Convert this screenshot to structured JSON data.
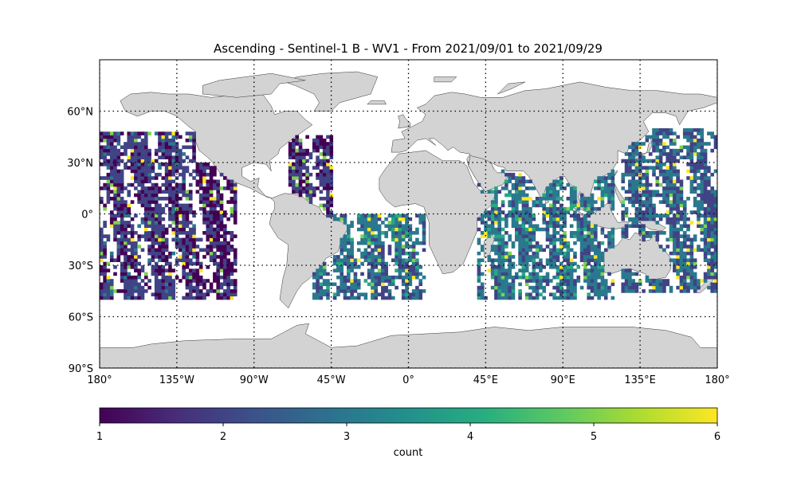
{
  "chart_data": {
    "type": "heatmap",
    "title": "Ascending - Sentinel-1 B - WV1 - From 2021/09/01 to 2021/09/29",
    "projection": "equirectangular",
    "extent": {
      "lon": [
        -180,
        180
      ],
      "lat": [
        -90,
        90
      ]
    },
    "xticks": [
      {
        "lon": -180,
        "label": "180°"
      },
      {
        "lon": -135,
        "label": "135°W"
      },
      {
        "lon": -90,
        "label": "90°W"
      },
      {
        "lon": -45,
        "label": "45°W"
      },
      {
        "lon": 0,
        "label": "0°"
      },
      {
        "lon": 45,
        "label": "45°E"
      },
      {
        "lon": 90,
        "label": "90°E"
      },
      {
        "lon": 135,
        "label": "135°E"
      },
      {
        "lon": 180,
        "label": "180°"
      }
    ],
    "yticks": [
      {
        "lat": 60,
        "label": "60°N"
      },
      {
        "lat": 30,
        "label": "30°N"
      },
      {
        "lat": 0,
        "label": "0°"
      },
      {
        "lat": -30,
        "label": "30°S"
      },
      {
        "lat": -60,
        "label": "60°S"
      },
      {
        "lat": -90,
        "label": "90°S"
      }
    ],
    "grid": "dotted",
    "land_color": "#d3d3d3",
    "colormap": "viridis",
    "colorbar": {
      "label": "count",
      "range": [
        1,
        6
      ],
      "ticks": [
        {
          "value": 1,
          "label": "1"
        },
        {
          "value": 2,
          "label": "2"
        },
        {
          "value": 3,
          "label": "3"
        },
        {
          "value": 4,
          "label": "4"
        },
        {
          "value": 5,
          "label": "5"
        },
        {
          "value": 6,
          "label": "6"
        }
      ],
      "placement": "bottom"
    },
    "data_lat_range": [
      -50,
      50
    ],
    "data_lon_range": [
      -180,
      180
    ],
    "cell_size_deg": 2,
    "coverage_bands": [
      {
        "region": "eastern Pacific",
        "lon": [
          -180,
          -125
        ],
        "lat": [
          -50,
          48
        ],
        "typical_count": 1.8
      },
      {
        "region": "eastern Pacific swaths",
        "lon": [
          -125,
          -100
        ],
        "lat": [
          -50,
          30
        ],
        "typical_count": 1.4
      },
      {
        "region": "western North Atlantic",
        "lon": [
          -70,
          -45
        ],
        "lat": [
          -10,
          45
        ],
        "typical_count": 1.6
      },
      {
        "region": "South Atlantic",
        "lon": [
          -55,
          10
        ],
        "lat": [
          -50,
          0
        ],
        "typical_count": 2.8
      },
      {
        "region": "Indian Ocean",
        "lon": [
          40,
          120
        ],
        "lat": [
          -50,
          25
        ],
        "typical_count": 2.9
      },
      {
        "region": "western Pacific",
        "lon": [
          125,
          180
        ],
        "lat": [
          -45,
          50
        ],
        "typical_count": 2.5
      }
    ]
  }
}
